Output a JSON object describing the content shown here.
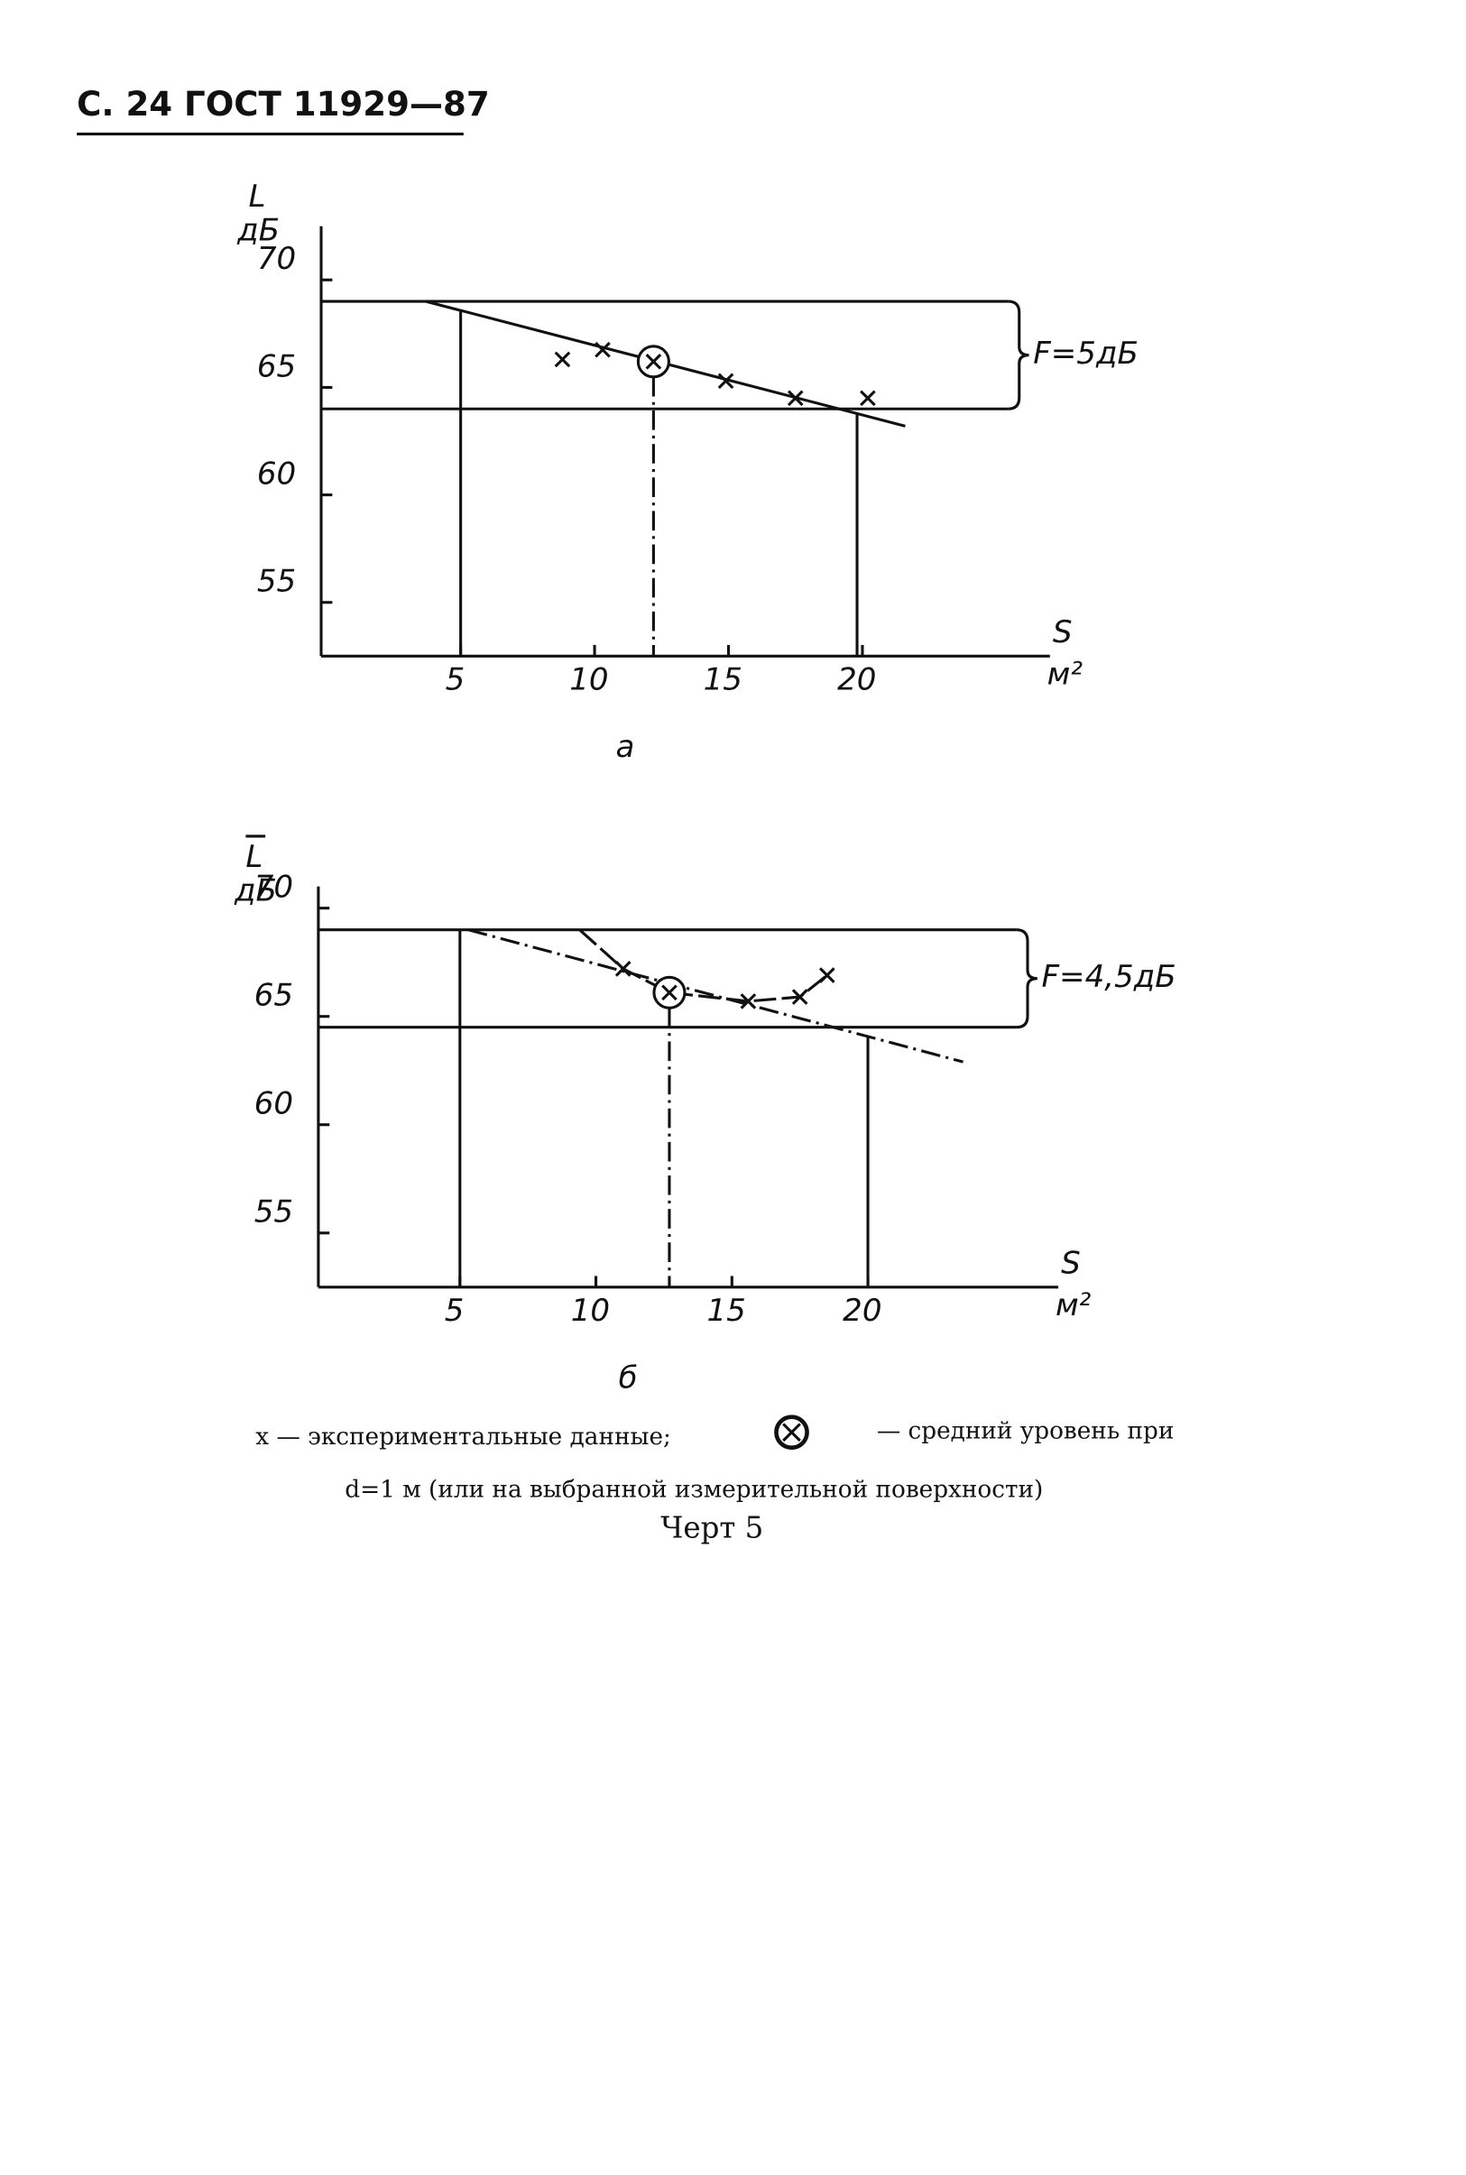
{
  "header": {
    "title": "С. 24 ГОСТ 11929—87"
  },
  "chart_data": [
    {
      "type": "scatter",
      "y_label": "L",
      "y_unit": "дБ",
      "x_label": "S",
      "x_unit": "м²",
      "panel_label": "а",
      "xlim": [
        0,
        27
      ],
      "ylim": [
        52.5,
        72.5
      ],
      "xticks": [
        5,
        10,
        15,
        20
      ],
      "yticks": [
        55,
        60,
        65,
        70
      ],
      "points": {
        "x": [
          8.8,
          10.3,
          14.9,
          17.5,
          20.2
        ],
        "y": [
          66.3,
          66.75,
          65.3,
          64.5,
          64.5
        ]
      },
      "mean": {
        "x": 12.2,
        "y": 66.2
      },
      "fit": {
        "x": [
          3.7,
          21.6
        ],
        "y": [
          69,
          63.2
        ]
      },
      "fit_style": "solid",
      "band": [
        64,
        69
      ],
      "band_label": "F=5дБ",
      "limits_x": [
        5,
        19.8
      ]
    },
    {
      "type": "scatter",
      "y_label": "L",
      "y_label_overline": true,
      "y_unit": "дБ",
      "x_label": "S",
      "x_unit": "м²",
      "panel_label": "б",
      "xlim": [
        0,
        27
      ],
      "ylim": [
        52.5,
        71
      ],
      "xticks": [
        5,
        10,
        15,
        20
      ],
      "yticks": [
        55,
        60,
        65,
        70
      ],
      "points": {
        "x": [
          11.0,
          15.6,
          17.5,
          18.5
        ],
        "y": [
          67.2,
          65.7,
          65.9,
          66.9
        ]
      },
      "mean": {
        "x": 12.7,
        "y": 66.1
      },
      "fit": {
        "x": [
          5.3,
          23.5
        ],
        "y": [
          69,
          62.9
        ]
      },
      "fit_style": "dash-dot",
      "trend": {
        "x": [
          9.4,
          11.0,
          12.7,
          15.6,
          17.5,
          18.5
        ],
        "y": [
          69,
          67.2,
          66.1,
          65.7,
          65.9,
          66.9
        ]
      },
      "band": [
        64.5,
        69
      ],
      "band_label": "F=4,5дБ",
      "limits_x": [
        5,
        20
      ]
    }
  ],
  "caption": {
    "legend_cross": "x — экспериментальные данные;",
    "legend_mean": "— средний уровень при",
    "line2": "d=1 м (или на выбранной измерительной поверхности)",
    "figure": "Черт 5"
  }
}
